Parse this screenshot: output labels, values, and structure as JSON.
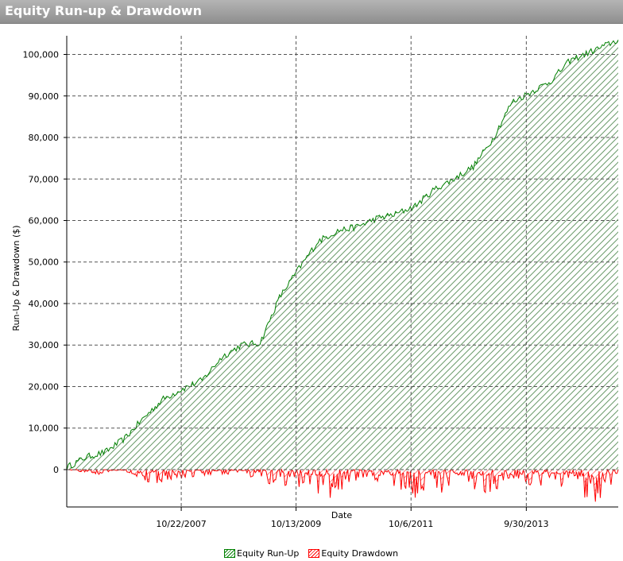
{
  "window": {
    "title": "Equity Run-up & Drawdown"
  },
  "chart_data": {
    "type": "area",
    "title": "",
    "xlabel": "Date",
    "ylabel": "Run-Up & Drawdown ($)",
    "x_ticks": [
      "10/22/2007",
      "10/13/2009",
      "10/6/2011",
      "9/30/2013"
    ],
    "y_ticks": [
      "0",
      "10,000",
      "20,000",
      "30,000",
      "40,000",
      "50,000",
      "60,000",
      "70,000",
      "80,000",
      "90,000",
      "100,000"
    ],
    "ylim": [
      -9000,
      104500
    ],
    "xlim": [
      "11/1/2005",
      "5/1/2015"
    ],
    "grid": true,
    "legend": "bottom",
    "colors": {
      "runup": "#008000",
      "drawdown": "#ff0000"
    },
    "series": [
      {
        "name": "Equity Run-Up",
        "x": [
          "11/1/2005",
          "3/1/2006",
          "7/1/2006",
          "11/1/2006",
          "3/1/2007",
          "7/1/2007",
          "11/1/2007",
          "3/1/2008",
          "7/1/2008",
          "11/1/2008",
          "3/1/2009",
          "7/1/2009",
          "11/1/2009",
          "3/1/2010",
          "7/1/2010",
          "11/1/2010",
          "3/1/2011",
          "7/1/2011",
          "11/1/2011",
          "3/1/2012",
          "7/1/2012",
          "11/1/2012",
          "3/1/2013",
          "7/1/2013",
          "11/1/2013",
          "3/1/2014",
          "7/1/2014",
          "11/1/2014",
          "5/1/2015"
        ],
        "values": [
          500,
          3000,
          4200,
          7500,
          12500,
          17000,
          19500,
          21500,
          27000,
          30000,
          30500,
          41500,
          48500,
          55000,
          57500,
          58500,
          60500,
          61500,
          63500,
          67500,
          70000,
          73000,
          79500,
          88500,
          91000,
          93500,
          98500,
          100500,
          103500
        ]
      },
      {
        "name": "Equity Drawdown",
        "x": [
          "11/1/2005",
          "5/1/2006",
          "11/1/2006",
          "5/1/2007",
          "11/1/2007",
          "5/1/2008",
          "11/1/2008",
          "5/1/2009",
          "11/1/2009",
          "5/1/2010",
          "11/1/2010",
          "5/1/2011",
          "11/1/2011",
          "5/1/2012",
          "11/1/2012",
          "5/1/2013",
          "11/1/2013",
          "5/1/2014",
          "11/1/2014",
          "5/1/2015"
        ],
        "values": [
          0,
          -1200,
          -900,
          -3500,
          -2000,
          -1500,
          -900,
          -3800,
          -4500,
          -7500,
          -3000,
          -2800,
          -7000,
          -6500,
          -5000,
          -6500,
          -4000,
          -4500,
          -8500,
          -5000
        ]
      }
    ]
  }
}
